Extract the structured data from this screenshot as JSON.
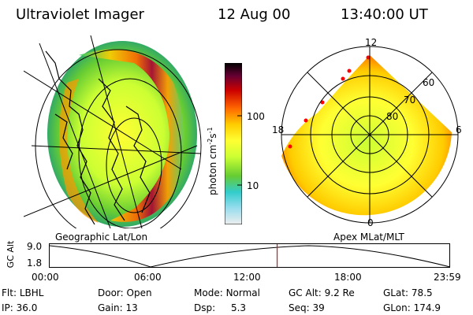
{
  "header": {
    "instrument": "Ultraviolet Imager",
    "date": "12 Aug 00",
    "time": "13:40:00 UT"
  },
  "colorbar": {
    "label": "photon cm",
    "label_sup1": "-2",
    "label_mid": "s",
    "label_sup2": "-1",
    "tick_100": "100",
    "tick_10": "10"
  },
  "left_panel": {
    "caption": "Geographic Lat/Lon"
  },
  "right_panel": {
    "caption": "Apex MLat/MLT",
    "mlt_12": "12",
    "mlt_18": "18",
    "mlt_6": "6",
    "mlt_0": "0",
    "mlat_60": "60",
    "mlat_70": "70",
    "mlat_80": "80"
  },
  "timeline": {
    "ylabel": "GC Alt",
    "y_top": "9.0",
    "y_bottom": "1.8",
    "ticks": [
      "00:00",
      "06:00",
      "12:00",
      "18:00",
      "23:59"
    ],
    "current_marker_fraction": 0.569
  },
  "info": {
    "row1": [
      {
        "label": "Flt:",
        "value": "LBHL"
      },
      {
        "label": "Door:",
        "value": "Open"
      },
      {
        "label": "Mode:",
        "value": "Normal"
      },
      {
        "label": "GC Alt:",
        "value": "9.2 Re"
      },
      {
        "label": "GLat:",
        "value": "78.5"
      }
    ],
    "row2": [
      {
        "label": "IP:",
        "value": "36.0"
      },
      {
        "label": "Gain:",
        "value": "13"
      },
      {
        "label": "Dsp:",
        "value": "5.3"
      },
      {
        "label": "Seq:",
        "value": "39"
      },
      {
        "label": "GLon:",
        "value": "174.9"
      }
    ]
  },
  "colors": {
    "marker": "#ff0000"
  }
}
